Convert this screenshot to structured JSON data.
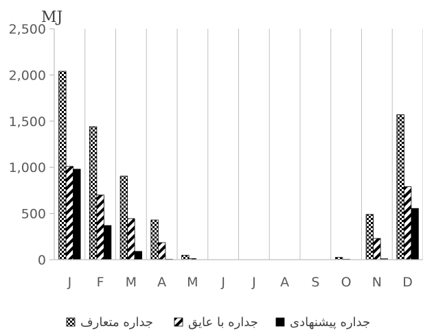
{
  "chart_data": {
    "type": "bar",
    "ylabel": "MJ",
    "ylim": [
      0,
      2500
    ],
    "yticks": [
      0,
      500,
      1000,
      1500,
      2000,
      2500
    ],
    "ytick_labels": [
      "0",
      "500",
      "1,000",
      "1,500",
      "2,000",
      "2,500"
    ],
    "categories": [
      "J",
      "F",
      "M",
      "A",
      "M",
      "J",
      "J",
      "A",
      "S",
      "O",
      "N",
      "D"
    ],
    "grid": "vertical",
    "legend_position": "bottom",
    "series": [
      {
        "name": "جداره متعارف",
        "pattern": "checker",
        "values": [
          2040,
          1440,
          905,
          430,
          48,
          0,
          0,
          0,
          0,
          25,
          490,
          1570
        ]
      },
      {
        "name": "جداره با عایق",
        "pattern": "diagonal",
        "values": [
          1010,
          700,
          445,
          185,
          12,
          0,
          0,
          0,
          0,
          5,
          230,
          790
        ]
      },
      {
        "name": "جداره پیشنهادی",
        "pattern": "solid",
        "values": [
          980,
          370,
          90,
          5,
          0,
          0,
          0,
          0,
          0,
          0,
          10,
          555
        ]
      }
    ],
    "colors": {
      "dark": "#000000",
      "light": "#ffffff",
      "axis": "#bfbfbf",
      "text": "#595959"
    }
  }
}
